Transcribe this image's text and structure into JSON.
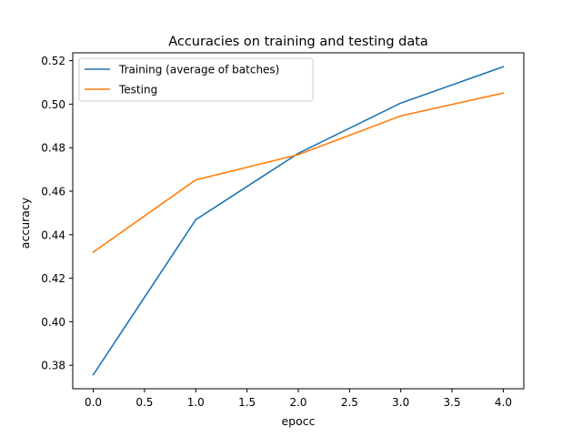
{
  "chart_data": {
    "type": "line",
    "title": "Accuracies on training and testing data",
    "xlabel": "epocc",
    "ylabel": "accuracy",
    "xlim": [
      -0.2,
      4.2
    ],
    "ylim": [
      0.3692,
      0.5236
    ],
    "x_ticks": [
      0.0,
      0.5,
      1.0,
      1.5,
      2.0,
      2.5,
      3.0,
      3.5,
      4.0
    ],
    "x_tick_labels": [
      "0.0",
      "0.5",
      "1.0",
      "1.5",
      "2.0",
      "2.5",
      "3.0",
      "3.5",
      "4.0"
    ],
    "y_ticks": [
      0.38,
      0.4,
      0.42,
      0.44,
      0.46,
      0.48,
      0.5,
      0.52
    ],
    "y_tick_labels": [
      "0.38",
      "0.40",
      "0.42",
      "0.44",
      "0.46",
      "0.48",
      "0.50",
      "0.52"
    ],
    "grid": false,
    "legend_position": "top-left",
    "series": [
      {
        "name": "Training (average of batches)",
        "color": "#1f77b4",
        "x": [
          0,
          1,
          2,
          3,
          4
        ],
        "y": [
          0.3756,
          0.4469,
          0.4774,
          0.5005,
          0.5172
        ]
      },
      {
        "name": "Testing",
        "color": "#ff7f0e",
        "x": [
          0,
          1,
          2,
          3,
          4
        ],
        "y": [
          0.432,
          0.4652,
          0.4768,
          0.4946,
          0.5051
        ]
      }
    ]
  }
}
